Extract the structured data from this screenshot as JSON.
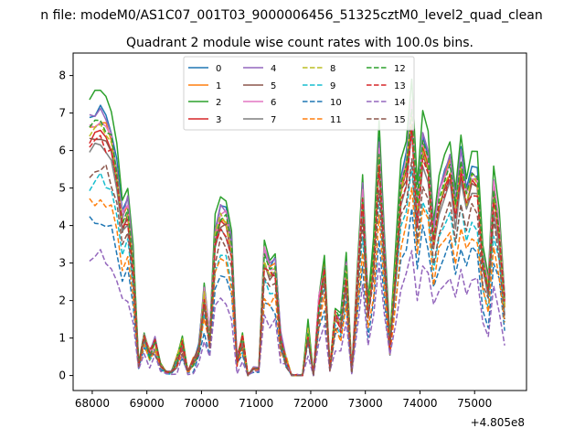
{
  "figure": {
    "suptitle": "n file: modeM0/AS1C07_001T03_9000006456_51325cztM0_level2_quad_clean",
    "title": "Quadrant 2 module wise count rates with 100.0s bins.",
    "offset_text": "+4.805e8"
  },
  "colors": [
    "#1f77b4",
    "#ff7f0e",
    "#2ca02c",
    "#d62728",
    "#9467bd",
    "#8c564b",
    "#e377c2",
    "#7f7f7f",
    "#bcbd22",
    "#17becf",
    "#1f77b4",
    "#ff7f0e",
    "#2ca02c",
    "#d62728",
    "#9467bd",
    "#8c564b"
  ],
  "chart_data": {
    "type": "line",
    "title": "Quadrant 2 module wise count rates with 100.0s bins.",
    "xlabel": "",
    "ylabel": "",
    "x_offset": 480500000,
    "xlim": [
      67650,
      75950
    ],
    "ylim": [
      -0.4,
      8.6
    ],
    "xticks": [
      68000,
      69000,
      70000,
      71000,
      72000,
      73000,
      74000,
      75000
    ],
    "yticks": [
      0,
      1,
      2,
      3,
      4,
      5,
      6,
      7,
      8
    ],
    "xtick_labels": [
      "68000",
      "69000",
      "70000",
      "71000",
      "72000",
      "73000",
      "74000",
      "75000"
    ],
    "ytick_labels": [
      "0",
      "1",
      "2",
      "3",
      "4",
      "5",
      "6",
      "7",
      "8"
    ],
    "grid": false,
    "legend_position": "upper center",
    "legend_columns": 4,
    "x": [
      67950,
      68050,
      68150,
      68250,
      68350,
      68450,
      68550,
      68650,
      68750,
      68850,
      68950,
      69050,
      69150,
      69250,
      69350,
      69450,
      69550,
      69650,
      69750,
      69850,
      69950,
      70050,
      70150,
      70250,
      70350,
      70450,
      70550,
      70650,
      70750,
      70850,
      70950,
      71050,
      71150,
      71250,
      71350,
      71450,
      71550,
      71650,
      71750,
      71850,
      71950,
      72050,
      72150,
      72250,
      72350,
      72450,
      72550,
      72650,
      72750,
      72850,
      72950,
      73050,
      73150,
      73250,
      73350,
      73450,
      73550,
      73650,
      73750,
      73850,
      73950,
      74050,
      74150,
      74250,
      74350,
      74450,
      74550,
      74650,
      74750,
      74850,
      74950,
      75050,
      75150,
      75250,
      75350,
      75450,
      75550
    ],
    "base": [
      6.8,
      6.9,
      7.0,
      6.8,
      6.5,
      5.6,
      4.3,
      4.6,
      3.2,
      0.3,
      1.0,
      0.6,
      0.9,
      0.3,
      0.1,
      0.1,
      0.4,
      0.9,
      0.1,
      0.4,
      0.7,
      2.2,
      1.0,
      3.9,
      4.4,
      4.3,
      3.5,
      0.4,
      1.0,
      0.0,
      0.2,
      0.2,
      3.3,
      2.9,
      3.0,
      1.0,
      0.4,
      0.0,
      0.0,
      0.0,
      1.3,
      0.0,
      2.0,
      3.0,
      0.2,
      1.7,
      1.5,
      3.0,
      0.1,
      2.5,
      5.0,
      1.9,
      3.3,
      6.2,
      3.4,
      0.9,
      3.0,
      5.2,
      5.8,
      7.3,
      4.6,
      6.4,
      5.9,
      3.8,
      4.9,
      5.4,
      5.8,
      4.6,
      5.9,
      4.9,
      5.5,
      5.4,
      3.2,
      2.4,
      5.1,
      4.0,
      2.0
    ],
    "series": [
      {
        "name": "0",
        "style": "solid",
        "scale": 1.01,
        "jitter": 0.15,
        "seed": 1
      },
      {
        "name": "1",
        "style": "solid",
        "scale": 0.98,
        "jitter": 0.18,
        "seed": 2
      },
      {
        "name": "2",
        "style": "solid",
        "scale": 1.09,
        "jitter": 0.1,
        "seed": 3
      },
      {
        "name": "3",
        "style": "solid",
        "scale": 0.93,
        "jitter": 0.15,
        "seed": 4
      },
      {
        "name": "4",
        "style": "solid",
        "scale": 1.0,
        "jitter": 0.2,
        "seed": 5
      },
      {
        "name": "5",
        "style": "solid",
        "scale": 0.92,
        "jitter": 0.15,
        "seed": 6
      },
      {
        "name": "6",
        "style": "solid",
        "scale": 0.98,
        "jitter": 0.2,
        "seed": 7
      },
      {
        "name": "7",
        "style": "solid",
        "scale": 0.88,
        "jitter": 0.15,
        "seed": 8
      },
      {
        "name": "8",
        "style": "dashed",
        "scale": 0.95,
        "jitter": 0.15,
        "seed": 9
      },
      {
        "name": "9",
        "style": "dashed",
        "scale": 0.75,
        "jitter": 0.2,
        "seed": 10
      },
      {
        "name": "10",
        "style": "dashed",
        "scale": 0.6,
        "jitter": 0.2,
        "seed": 11
      },
      {
        "name": "11",
        "style": "dashed",
        "scale": 0.68,
        "jitter": 0.2,
        "seed": 12
      },
      {
        "name": "12",
        "style": "dashed",
        "scale": 0.97,
        "jitter": 0.15,
        "seed": 13
      },
      {
        "name": "13",
        "style": "dashed",
        "scale": 0.9,
        "jitter": 0.2,
        "seed": 14
      },
      {
        "name": "14",
        "style": "dashed",
        "scale": 0.46,
        "jitter": 0.15,
        "seed": 15
      },
      {
        "name": "15",
        "style": "dashed",
        "scale": 0.8,
        "jitter": 0.2,
        "seed": 16
      }
    ]
  }
}
